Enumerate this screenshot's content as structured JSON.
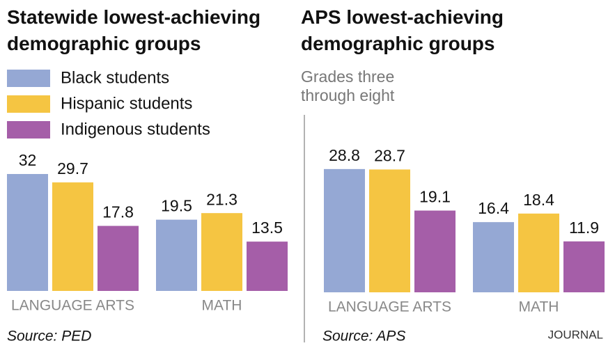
{
  "chart_data": [
    {
      "type": "bar",
      "title": "Statewide lowest-achieving demographic groups",
      "categories": [
        "LANGUAGE ARTS",
        "MATH"
      ],
      "series": [
        {
          "name": "Black students",
          "color": "#95a8d4",
          "values": [
            32,
            19.5
          ]
        },
        {
          "name": "Hispanic students",
          "color": "#f5c542",
          "values": [
            29.7,
            21.3
          ]
        },
        {
          "name": "Indigenous students",
          "color": "#a55ea8",
          "values": [
            17.8,
            13.5
          ]
        }
      ],
      "legend": "top-left",
      "source": "Source: PED"
    },
    {
      "type": "bar",
      "title": "APS lowest-achieving demographic groups",
      "subtitle": "Grades three through eight",
      "categories": [
        "LANGUAGE ARTS",
        "MATH"
      ],
      "series": [
        {
          "color": "#95a8d4",
          "values": [
            28.8,
            16.4
          ]
        },
        {
          "color": "#f5c542",
          "values": [
            28.7,
            18.4
          ]
        },
        {
          "color": "#a55ea8",
          "values": [
            19.1,
            11.9
          ]
        }
      ],
      "source": "Source: APS",
      "credit": "JOURNAL"
    }
  ]
}
